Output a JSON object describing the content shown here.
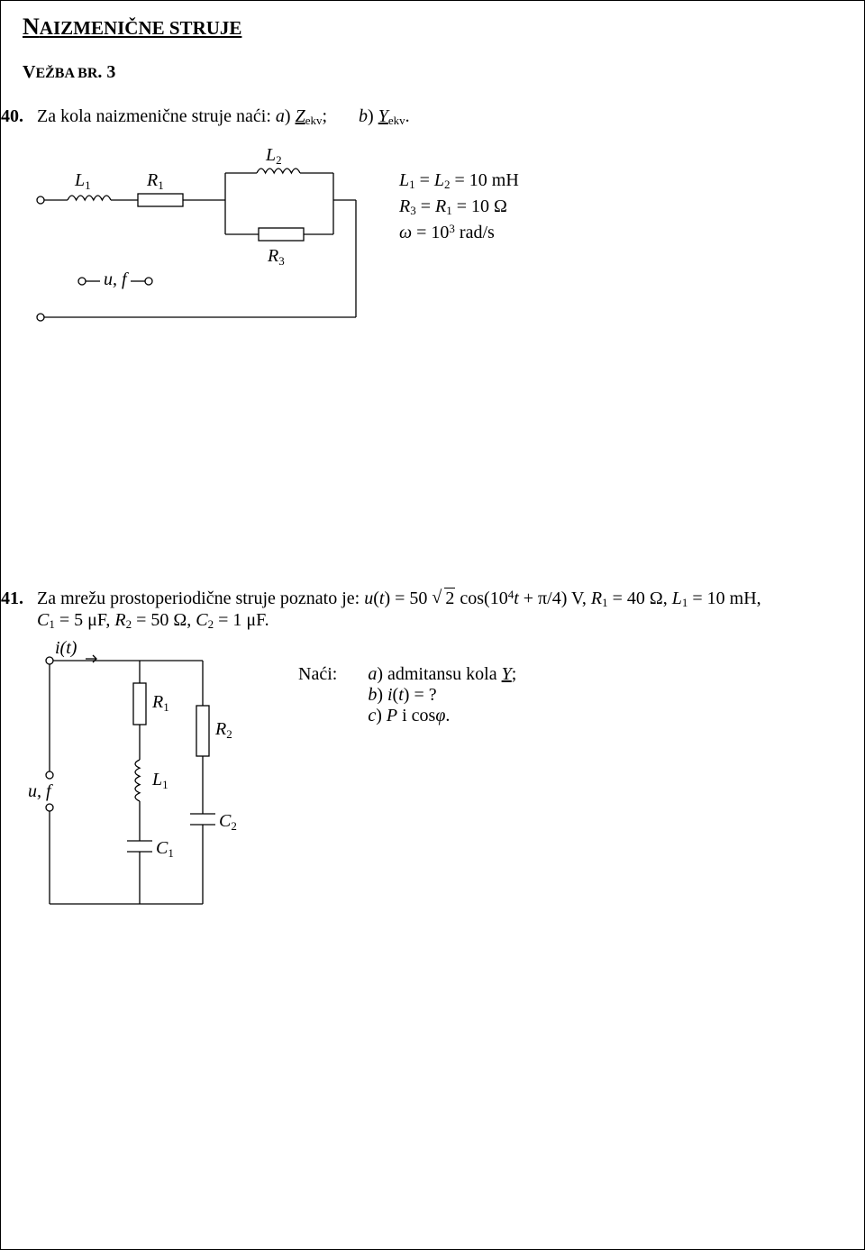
{
  "title_main": "N",
  "title_rest": "AIZMENIČNE STRUJE",
  "subtitle_main": "V",
  "subtitle_rest": "EŽBA BR",
  "subtitle_num": ". 3",
  "q40_num": "40.",
  "q40_text_a": "Za kola naizmenične struje naći:   ",
  "q40_a_label": "a",
  "q40_a_sym": "Z",
  "q40_a_sub": "ekv",
  "q40_b_label": "b",
  "q40_b_sym": "Y",
  "q40_b_sub": "ekv",
  "ckt40": {
    "L1": "L",
    "L1sub": "1",
    "R1": "R",
    "R1sub": "1",
    "L2": "L",
    "L2sub": "2",
    "R3": "R",
    "R3sub": "3",
    "uf": "u, f",
    "stroke": "#000000",
    "stroke_width": 1.3,
    "font_size_label": 20,
    "font_size_sub": 13
  },
  "params40": {
    "line1_a": "L",
    "line1_a_sub": "1",
    "line1_eq1": " = ",
    "line1_b": "L",
    "line1_b_sub": "2",
    "line1_eq2": " = 10 mH",
    "line2_a": "R",
    "line2_a_sub": "3",
    "line2_eq1": " = ",
    "line2_b": "R",
    "line2_b_sub": "1",
    "line2_eq2": " = 10 Ω",
    "line3_w": "ω",
    "line3_eq": " = 10",
    "line3_sup": "3",
    "line3_unit": " rad/s"
  },
  "q41_num": "41.",
  "q41_text": "Za mrežu prostoperiodične struje poznato je: ",
  "q41_u": "u",
  "q41_ut": "(t) = 50",
  "q41_sqrt": "2",
  "q41_cos": " cos(10",
  "q41_cossup": "4",
  "q41_cos2": "t + π/4) V, ",
  "q41_r1": "R",
  "q41_r1sub": "1",
  "q41_r1v": " = 40 Ω, ",
  "q41_l1": "L",
  "q41_l1sub": "1",
  "q41_l1v": " = 10 mH,",
  "q41_c1": "C",
  "q41_c1sub": "1",
  "q41_c1v": " = 5 μF, ",
  "q41_r2": "R",
  "q41_r2sub": "2",
  "q41_r2v": " = 50 Ω, ",
  "q41_c2": "C",
  "q41_c2sub": "2",
  "q41_c2v": " = 1 μF.",
  "ckt41": {
    "it": "i(t)",
    "uf": "u, f",
    "R1": "R",
    "R1sub": "1",
    "R2": "R",
    "R2sub": "2",
    "L1": "L",
    "L1sub": "1",
    "C1": "C",
    "C1sub": "1",
    "C2": "C",
    "C2sub": "2",
    "stroke": "#000000",
    "stroke_width": 1.3
  },
  "naci_label": "Naći:",
  "naci_a_l": "a",
  "naci_a_t1": ") admitansu kola ",
  "naci_a_sym": "Y",
  "naci_a_t2": ";",
  "naci_b_l": "b",
  "naci_b_t1": ") ",
  "naci_b_i": "i",
  "naci_b_t2": "(",
  "naci_b_tt": "t",
  "naci_b_t3": ") = ?",
  "naci_c_l": "c",
  "naci_c_t1": ") ",
  "naci_c_p": "P",
  "naci_c_t2": " i cos",
  "naci_c_phi": "φ",
  "naci_c_t3": "."
}
